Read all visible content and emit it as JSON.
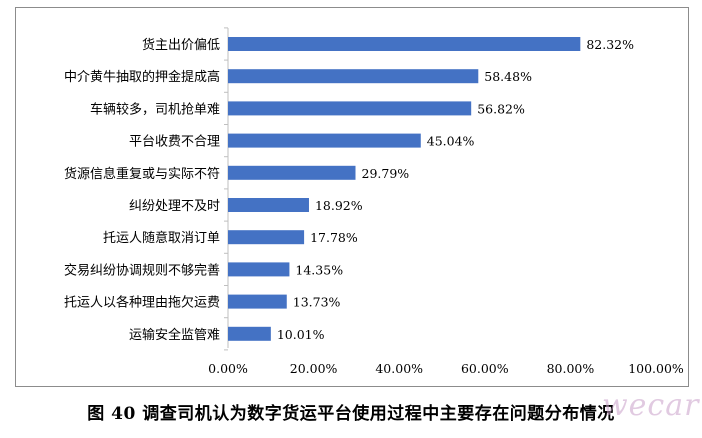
{
  "chart_data": {
    "type": "bar",
    "orientation": "horizontal",
    "categories": [
      "货主出价偏低",
      "中介黄牛抽取的押金提成高",
      "车辆较多，司机抢单难",
      "平台收费不合理",
      "货源信息重复或与实际不符",
      "纠纷处理不及时",
      "托运人随意取消订单",
      "交易纠纷协调规则不够完善",
      "托运人以各种理由拖欠运费",
      "运输安全监管难"
    ],
    "values": [
      82.32,
      58.48,
      56.82,
      45.04,
      29.79,
      18.92,
      17.78,
      14.35,
      13.73,
      10.01
    ],
    "value_labels": [
      "82.32%",
      "58.48%",
      "56.82%",
      "45.04%",
      "29.79%",
      "18.92%",
      "17.78%",
      "14.35%",
      "13.73%",
      "10.01%"
    ],
    "xlim": [
      0,
      100
    ],
    "x_ticks": [
      0,
      20,
      40,
      60,
      80,
      100
    ],
    "x_tick_labels": [
      "0.00%",
      "20.00%",
      "40.00%",
      "60.00%",
      "80.00%",
      "100.00%"
    ],
    "grid": false,
    "bar_color": "#4472c4",
    "title": "",
    "xlabel": "",
    "ylabel": ""
  },
  "caption": "图 40  调查司机认为数字货运平台使用过程中主要存在问题分布情况",
  "watermark": "wecar"
}
